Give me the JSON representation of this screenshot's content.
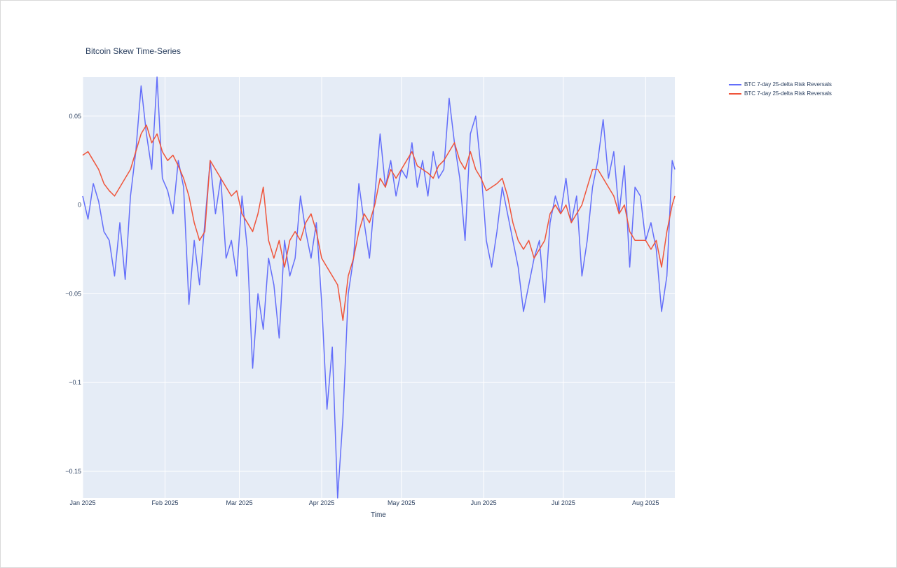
{
  "chart_data": {
    "type": "line",
    "title": "Bitcoin Skew Time-Series",
    "xlabel": "Time",
    "ylabel": "",
    "x_range": [
      "2025-01-01",
      "2025-08-12"
    ],
    "ylim": [
      -0.165,
      0.072
    ],
    "grid": true,
    "legend_position": "top-right",
    "x_ticks": [
      {
        "date": "2025-01-01",
        "label": "Jan 2025"
      },
      {
        "date": "2025-02-01",
        "label": "Feb 2025"
      },
      {
        "date": "2025-03-01",
        "label": "Mar 2025"
      },
      {
        "date": "2025-04-01",
        "label": "Apr 2025"
      },
      {
        "date": "2025-05-01",
        "label": "May 2025"
      },
      {
        "date": "2025-06-01",
        "label": "Jun 2025"
      },
      {
        "date": "2025-07-01",
        "label": "Jul 2025"
      },
      {
        "date": "2025-08-01",
        "label": "Aug 2025"
      }
    ],
    "y_ticks": [
      {
        "value": 0.05,
        "label": "0.05"
      },
      {
        "value": 0,
        "label": "0"
      },
      {
        "value": -0.05,
        "label": "−0.05"
      },
      {
        "value": -0.1,
        "label": "−0.1"
      },
      {
        "value": -0.15,
        "label": "−0.15"
      }
    ],
    "series": [
      {
        "name": "BTC 7-day 25-delta Risk Reversals",
        "color": "#636efa",
        "x": [
          "2025-01-01",
          "2025-01-03",
          "2025-01-05",
          "2025-01-07",
          "2025-01-09",
          "2025-01-11",
          "2025-01-13",
          "2025-01-15",
          "2025-01-17",
          "2025-01-19",
          "2025-01-21",
          "2025-01-23",
          "2025-01-25",
          "2025-01-27",
          "2025-01-29",
          "2025-01-31",
          "2025-02-02",
          "2025-02-04",
          "2025-02-06",
          "2025-02-08",
          "2025-02-10",
          "2025-02-12",
          "2025-02-14",
          "2025-02-16",
          "2025-02-18",
          "2025-02-20",
          "2025-02-22",
          "2025-02-24",
          "2025-02-26",
          "2025-02-28",
          "2025-03-02",
          "2025-03-04",
          "2025-03-06",
          "2025-03-08",
          "2025-03-10",
          "2025-03-12",
          "2025-03-14",
          "2025-03-16",
          "2025-03-18",
          "2025-03-20",
          "2025-03-22",
          "2025-03-24",
          "2025-03-26",
          "2025-03-28",
          "2025-03-30",
          "2025-04-01",
          "2025-04-03",
          "2025-04-05",
          "2025-04-07",
          "2025-04-09",
          "2025-04-11",
          "2025-04-13",
          "2025-04-15",
          "2025-04-17",
          "2025-04-19",
          "2025-04-21",
          "2025-04-23",
          "2025-04-25",
          "2025-04-27",
          "2025-04-29",
          "2025-05-01",
          "2025-05-03",
          "2025-05-05",
          "2025-05-07",
          "2025-05-09",
          "2025-05-11",
          "2025-05-13",
          "2025-05-15",
          "2025-05-17",
          "2025-05-19",
          "2025-05-21",
          "2025-05-23",
          "2025-05-25",
          "2025-05-27",
          "2025-05-29",
          "2025-05-31",
          "2025-06-02",
          "2025-06-04",
          "2025-06-06",
          "2025-06-08",
          "2025-06-10",
          "2025-06-12",
          "2025-06-14",
          "2025-06-16",
          "2025-06-18",
          "2025-06-20",
          "2025-06-22",
          "2025-06-24",
          "2025-06-26",
          "2025-06-28",
          "2025-06-30",
          "2025-07-02",
          "2025-07-04",
          "2025-07-06",
          "2025-07-08",
          "2025-07-10",
          "2025-07-12",
          "2025-07-14",
          "2025-07-16",
          "2025-07-18",
          "2025-07-20",
          "2025-07-22",
          "2025-07-24",
          "2025-07-26",
          "2025-07-28",
          "2025-07-30",
          "2025-08-01",
          "2025-08-03",
          "2025-08-05",
          "2025-08-07",
          "2025-08-09",
          "2025-08-11",
          "2025-08-12"
        ],
        "values": [
          0.005,
          -0.008,
          0.012,
          0.002,
          -0.015,
          -0.02,
          -0.04,
          -0.01,
          -0.042,
          0.005,
          0.03,
          0.067,
          0.04,
          0.02,
          0.072,
          0.015,
          0.008,
          -0.005,
          0.025,
          0.01,
          -0.056,
          -0.02,
          -0.045,
          -0.01,
          0.025,
          -0.005,
          0.015,
          -0.03,
          -0.02,
          -0.04,
          0.005,
          -0.025,
          -0.092,
          -0.05,
          -0.07,
          -0.03,
          -0.045,
          -0.075,
          -0.02,
          -0.04,
          -0.03,
          0.005,
          -0.015,
          -0.03,
          -0.01,
          -0.055,
          -0.115,
          -0.08,
          -0.165,
          -0.12,
          -0.05,
          -0.03,
          0.012,
          -0.01,
          -0.03,
          0.005,
          0.04,
          0.01,
          0.025,
          0.005,
          0.02,
          0.015,
          0.035,
          0.01,
          0.025,
          0.005,
          0.03,
          0.015,
          0.02,
          0.06,
          0.035,
          0.015,
          -0.02,
          0.04,
          0.05,
          0.02,
          -0.02,
          -0.035,
          -0.015,
          0.01,
          -0.005,
          -0.02,
          -0.035,
          -0.06,
          -0.045,
          -0.03,
          -0.02,
          -0.055,
          -0.01,
          0.005,
          -0.005,
          0.015,
          -0.01,
          0.005,
          -0.04,
          -0.02,
          0.01,
          0.025,
          0.048,
          0.015,
          0.03,
          -0.005,
          0.022,
          -0.035,
          0.01,
          0.005,
          -0.02,
          -0.01,
          -0.025,
          -0.06,
          -0.04,
          0.025,
          0.02
        ]
      },
      {
        "name": "BTC 7-day 25-delta Risk Reversals",
        "color": "#ef553b",
        "x": [
          "2025-01-01",
          "2025-01-03",
          "2025-01-05",
          "2025-01-07",
          "2025-01-09",
          "2025-01-11",
          "2025-01-13",
          "2025-01-15",
          "2025-01-17",
          "2025-01-19",
          "2025-01-21",
          "2025-01-23",
          "2025-01-25",
          "2025-01-27",
          "2025-01-29",
          "2025-01-31",
          "2025-02-02",
          "2025-02-04",
          "2025-02-06",
          "2025-02-08",
          "2025-02-10",
          "2025-02-12",
          "2025-02-14",
          "2025-02-16",
          "2025-02-18",
          "2025-02-20",
          "2025-02-22",
          "2025-02-24",
          "2025-02-26",
          "2025-02-28",
          "2025-03-02",
          "2025-03-04",
          "2025-03-06",
          "2025-03-08",
          "2025-03-10",
          "2025-03-12",
          "2025-03-14",
          "2025-03-16",
          "2025-03-18",
          "2025-03-20",
          "2025-03-22",
          "2025-03-24",
          "2025-03-26",
          "2025-03-28",
          "2025-03-30",
          "2025-04-01",
          "2025-04-03",
          "2025-04-05",
          "2025-04-07",
          "2025-04-09",
          "2025-04-11",
          "2025-04-13",
          "2025-04-15",
          "2025-04-17",
          "2025-04-19",
          "2025-04-21",
          "2025-04-23",
          "2025-04-25",
          "2025-04-27",
          "2025-04-29",
          "2025-05-01",
          "2025-05-03",
          "2025-05-05",
          "2025-05-07",
          "2025-05-09",
          "2025-05-11",
          "2025-05-13",
          "2025-05-15",
          "2025-05-17",
          "2025-05-19",
          "2025-05-21",
          "2025-05-23",
          "2025-05-25",
          "2025-05-27",
          "2025-05-29",
          "2025-05-31",
          "2025-06-02",
          "2025-06-04",
          "2025-06-06",
          "2025-06-08",
          "2025-06-10",
          "2025-06-12",
          "2025-06-14",
          "2025-06-16",
          "2025-06-18",
          "2025-06-20",
          "2025-06-22",
          "2025-06-24",
          "2025-06-26",
          "2025-06-28",
          "2025-06-30",
          "2025-07-02",
          "2025-07-04",
          "2025-07-06",
          "2025-07-08",
          "2025-07-10",
          "2025-07-12",
          "2025-07-14",
          "2025-07-16",
          "2025-07-18",
          "2025-07-20",
          "2025-07-22",
          "2025-07-24",
          "2025-07-26",
          "2025-07-28",
          "2025-07-30",
          "2025-08-01",
          "2025-08-03",
          "2025-08-05",
          "2025-08-07",
          "2025-08-09",
          "2025-08-11",
          "2025-08-12"
        ],
        "values": [
          0.028,
          0.03,
          0.025,
          0.02,
          0.012,
          0.008,
          0.005,
          0.01,
          0.015,
          0.02,
          0.03,
          0.04,
          0.045,
          0.035,
          0.04,
          0.03,
          0.025,
          0.028,
          0.022,
          0.015,
          0.005,
          -0.01,
          -0.02,
          -0.015,
          0.025,
          0.02,
          0.015,
          0.01,
          0.005,
          0.008,
          -0.005,
          -0.01,
          -0.015,
          -0.005,
          0.01,
          -0.02,
          -0.03,
          -0.02,
          -0.035,
          -0.02,
          -0.015,
          -0.02,
          -0.01,
          -0.005,
          -0.015,
          -0.03,
          -0.035,
          -0.04,
          -0.045,
          -0.065,
          -0.04,
          -0.03,
          -0.015,
          -0.005,
          -0.01,
          0.0,
          0.015,
          0.01,
          0.02,
          0.015,
          0.02,
          0.025,
          0.03,
          0.022,
          0.02,
          0.018,
          0.015,
          0.022,
          0.025,
          0.03,
          0.035,
          0.025,
          0.02,
          0.03,
          0.02,
          0.015,
          0.008,
          0.01,
          0.012,
          0.015,
          0.005,
          -0.01,
          -0.02,
          -0.025,
          -0.02,
          -0.03,
          -0.025,
          -0.02,
          -0.005,
          0.0,
          -0.005,
          0.0,
          -0.01,
          -0.005,
          0.0,
          0.01,
          0.02,
          0.02,
          0.015,
          0.01,
          0.005,
          -0.005,
          0.0,
          -0.015,
          -0.02,
          -0.02,
          -0.02,
          -0.025,
          -0.02,
          -0.035,
          -0.015,
          0.0,
          0.005
        ]
      }
    ]
  }
}
